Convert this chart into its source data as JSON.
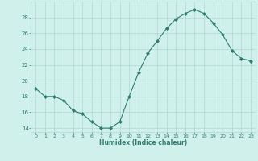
{
  "x": [
    0,
    1,
    2,
    3,
    4,
    5,
    6,
    7,
    8,
    9,
    10,
    11,
    12,
    13,
    14,
    15,
    16,
    17,
    18,
    19,
    20,
    21,
    22,
    23
  ],
  "y": [
    19.0,
    18.0,
    18.0,
    17.5,
    16.2,
    15.8,
    14.8,
    14.0,
    14.0,
    14.8,
    18.0,
    21.0,
    23.5,
    25.0,
    26.6,
    27.8,
    28.5,
    29.0,
    28.5,
    27.3,
    25.8,
    23.8,
    22.8,
    22.5
  ],
  "line_color": "#2d7d6e",
  "marker": "D",
  "marker_size": 2,
  "bg_color": "#d0f0eb",
  "grid_color": "#afd8d0",
  "xlabel": "Humidex (Indice chaleur)",
  "ylim": [
    13.5,
    30
  ],
  "yticks": [
    14,
    16,
    18,
    20,
    22,
    24,
    26,
    28
  ],
  "xticks": [
    0,
    1,
    2,
    3,
    4,
    5,
    6,
    7,
    8,
    9,
    10,
    11,
    12,
    13,
    14,
    15,
    16,
    17,
    18,
    19,
    20,
    21,
    22,
    23
  ],
  "tick_color": "#2d7d6e",
  "label_color": "#2d7d6e"
}
